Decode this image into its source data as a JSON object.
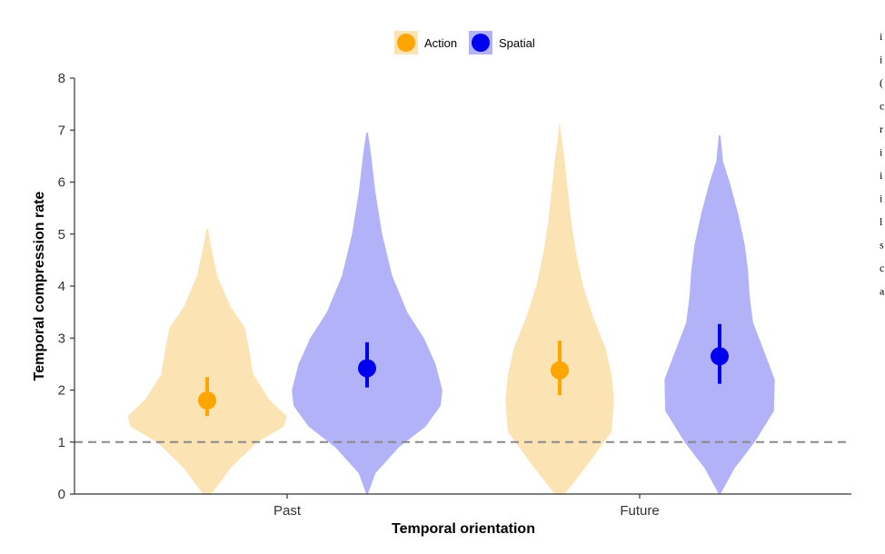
{
  "chart_data": {
    "type": "violin",
    "xlabel": "Temporal orientation",
    "ylabel": "Temporal compression rate",
    "categories": [
      "Past",
      "Future"
    ],
    "ylim": [
      0,
      8
    ],
    "yticks": [
      0,
      1,
      2,
      3,
      4,
      5,
      6,
      7,
      8
    ],
    "reference_line": {
      "y": 1,
      "style": "dashed",
      "color": "#888888"
    },
    "legend": {
      "position": "top",
      "entries": [
        "Action",
        "Spatial"
      ]
    },
    "grid": false,
    "series": [
      {
        "name": "Action",
        "color": "#ffa500",
        "fill": "#fbe3b4",
        "points": [
          {
            "category": "Past",
            "mean": 1.8,
            "ci": [
              1.5,
              2.25
            ],
            "min": 0,
            "max": 5.1,
            "density": [
              [
                0,
                0.05
              ],
              [
                0.5,
                0.28
              ],
              [
                1,
                0.6
              ],
              [
                1.3,
                0.92
              ],
              [
                1.5,
                0.95
              ],
              [
                1.8,
                0.75
              ],
              [
                2.3,
                0.55
              ],
              [
                2.8,
                0.5
              ],
              [
                3.2,
                0.45
              ],
              [
                3.6,
                0.28
              ],
              [
                4.2,
                0.12
              ],
              [
                4.8,
                0.04
              ],
              [
                5.1,
                0.01
              ]
            ]
          },
          {
            "category": "Future",
            "mean": 2.38,
            "ci": [
              1.9,
              2.95
            ],
            "min": 0,
            "max": 7.1,
            "density": [
              [
                0,
                0.06
              ],
              [
                0.6,
                0.35
              ],
              [
                1.2,
                0.62
              ],
              [
                1.8,
                0.65
              ],
              [
                2.3,
                0.62
              ],
              [
                2.8,
                0.55
              ],
              [
                3.4,
                0.4
              ],
              [
                4,
                0.28
              ],
              [
                4.6,
                0.2
              ],
              [
                5.2,
                0.14
              ],
              [
                5.8,
                0.1
              ],
              [
                6.4,
                0.06
              ],
              [
                6.9,
                0.02
              ],
              [
                7.1,
                0.005
              ]
            ]
          }
        ]
      },
      {
        "name": "Spatial",
        "color": "#0000ee",
        "fill": "#b2b2f8",
        "points": [
          {
            "category": "Past",
            "mean": 2.42,
            "ci": [
              2.05,
              2.92
            ],
            "min": 0,
            "max": 6.95,
            "density": [
              [
                0,
                0.01
              ],
              [
                0.4,
                0.1
              ],
              [
                0.9,
                0.38
              ],
              [
                1.3,
                0.7
              ],
              [
                1.7,
                0.88
              ],
              [
                2,
                0.9
              ],
              [
                2.5,
                0.82
              ],
              [
                3,
                0.68
              ],
              [
                3.5,
                0.48
              ],
              [
                4.2,
                0.3
              ],
              [
                5,
                0.18
              ],
              [
                5.8,
                0.1
              ],
              [
                6.5,
                0.05
              ],
              [
                6.95,
                0.01
              ]
            ]
          },
          {
            "category": "Future",
            "mean": 2.65,
            "ci": [
              2.12,
              3.27
            ],
            "min": 0,
            "max": 6.9,
            "density": [
              [
                0,
                0.01
              ],
              [
                0.5,
                0.18
              ],
              [
                1,
                0.42
              ],
              [
                1.6,
                0.65
              ],
              [
                2.2,
                0.66
              ],
              [
                2.8,
                0.52
              ],
              [
                3.3,
                0.4
              ],
              [
                3.8,
                0.36
              ],
              [
                4.3,
                0.34
              ],
              [
                4.8,
                0.3
              ],
              [
                5.4,
                0.22
              ],
              [
                6,
                0.12
              ],
              [
                6.4,
                0.04
              ],
              [
                6.9,
                0.01
              ]
            ]
          }
        ]
      }
    ]
  },
  "edge_text": [
    "i",
    "i",
    "(",
    "c",
    "r",
    "i",
    "i",
    "i",
    "l",
    "s",
    "c",
    "a"
  ]
}
